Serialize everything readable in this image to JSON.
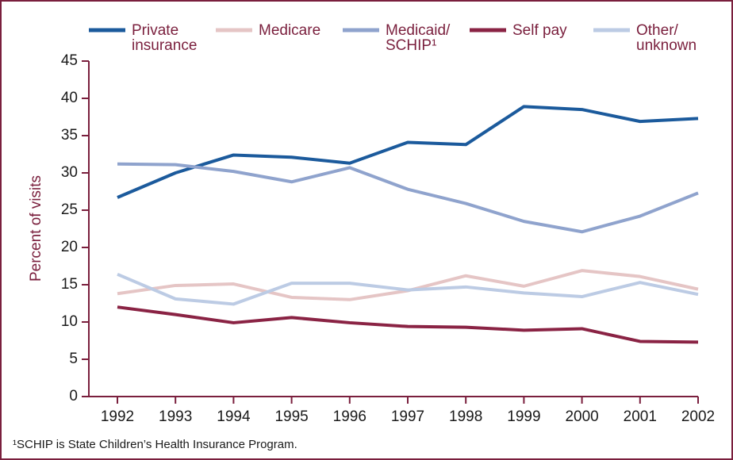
{
  "chart_data": {
    "type": "line",
    "y_label": "Percent of visits",
    "footnote": "¹SCHIP is State Children’s Health Insurance Program.",
    "x": [
      1992,
      1993,
      1994,
      1995,
      1996,
      1997,
      1998,
      1999,
      2000,
      2001,
      2002
    ],
    "xlim": [
      1992,
      2002
    ],
    "xticks": [
      1992,
      1993,
      1994,
      1995,
      1996,
      1997,
      1998,
      1999,
      2000,
      2001,
      2002
    ],
    "ylim": [
      0,
      45
    ],
    "yticks": [
      0,
      5,
      10,
      15,
      20,
      25,
      30,
      35,
      40,
      45
    ],
    "grid": false,
    "series": [
      {
        "name": "Private\ninsurance",
        "color": "#1b5a9c",
        "values": [
          26.7,
          30.0,
          32.4,
          32.1,
          31.3,
          34.1,
          33.8,
          38.9,
          38.5,
          36.9,
          37.3
        ]
      },
      {
        "name": "Medicare",
        "color": "#e5c5c5",
        "values": [
          13.8,
          14.9,
          15.1,
          13.3,
          13.0,
          14.2,
          16.2,
          14.8,
          16.9,
          16.1,
          14.4
        ]
      },
      {
        "name": "Medicaid/\nSCHIP¹",
        "color": "#8fa3cd",
        "values": [
          31.2,
          31.1,
          30.2,
          28.8,
          30.7,
          27.8,
          25.9,
          23.5,
          22.1,
          24.2,
          27.3
        ]
      },
      {
        "name": "Self pay",
        "color": "#8a2344",
        "values": [
          12.0,
          11.0,
          9.9,
          10.6,
          9.9,
          9.4,
          9.3,
          8.9,
          9.1,
          7.4,
          7.3
        ]
      },
      {
        "name": "Other/\nunknown",
        "color": "#bccbe4",
        "values": [
          16.4,
          13.1,
          12.4,
          15.2,
          15.2,
          14.3,
          14.7,
          13.9,
          13.4,
          15.3,
          13.7
        ]
      }
    ]
  }
}
